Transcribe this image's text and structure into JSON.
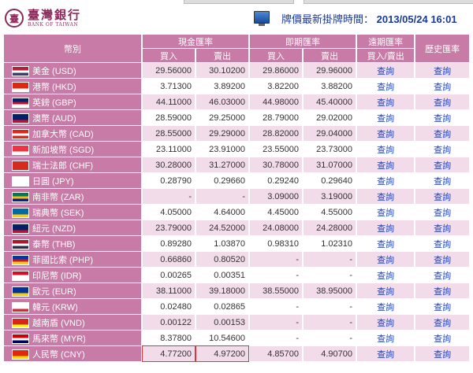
{
  "bank": {
    "name_cn": "臺灣銀行",
    "name_en": "BANK OF TAIWAN"
  },
  "update": {
    "label": "牌價最新掛牌時間：",
    "time": "2013/05/24 16:01"
  },
  "headers": {
    "currency": "幣別",
    "cash": "現金匯率",
    "spot": "即期匯率",
    "forward": "遠期匯率",
    "history": "歷史匯率",
    "buy": "買入",
    "sell": "賣出",
    "buy_sell": "買入/賣出"
  },
  "link_label": "查詢",
  "rows": [
    {
      "name": "美金 (USD)",
      "flag": [
        "#b22234",
        "#fff",
        "#3c3b6e"
      ],
      "cash_buy": "29.56000",
      "cash_sell": "30.10200",
      "spot_buy": "29.86000",
      "spot_sell": "29.96000"
    },
    {
      "name": "港幣 (HKD)",
      "flag": [
        "#de2910",
        "#de2910",
        "#fff"
      ],
      "cash_buy": "3.71300",
      "cash_sell": "3.89200",
      "spot_buy": "3.82200",
      "spot_sell": "3.88200"
    },
    {
      "name": "英鎊 (GBP)",
      "flag": [
        "#012169",
        "#c8102e",
        "#fff"
      ],
      "cash_buy": "44.11000",
      "cash_sell": "46.03000",
      "spot_buy": "44.98000",
      "spot_sell": "45.40000"
    },
    {
      "name": "澳幣 (AUD)",
      "flag": [
        "#012169",
        "#012169",
        "#c8102e"
      ],
      "cash_buy": "28.59000",
      "cash_sell": "29.25000",
      "spot_buy": "28.79000",
      "spot_sell": "29.02000"
    },
    {
      "name": "加拿大幣 (CAD)",
      "flag": [
        "#d52b1e",
        "#fff",
        "#d52b1e"
      ],
      "cash_buy": "28.55000",
      "cash_sell": "29.29000",
      "spot_buy": "28.82000",
      "spot_sell": "29.04000"
    },
    {
      "name": "新加坡幣 (SGD)",
      "flag": [
        "#ef3340",
        "#ef3340",
        "#fff"
      ],
      "cash_buy": "23.11000",
      "cash_sell": "23.91000",
      "spot_buy": "23.55000",
      "spot_sell": "23.73000"
    },
    {
      "name": "瑞士法郎 (CHF)",
      "flag": [
        "#d52b1e",
        "#d52b1e",
        "#d52b1e"
      ],
      "cash_buy": "30.28000",
      "cash_sell": "31.27000",
      "spot_buy": "30.78000",
      "spot_sell": "31.07000"
    },
    {
      "name": "日圓 (JPY)",
      "flag": [
        "#fff",
        "#fff",
        "#fff"
      ],
      "cash_buy": "0.28790",
      "cash_sell": "0.29660",
      "spot_buy": "0.29240",
      "spot_sell": "0.29640"
    },
    {
      "name": "南非幣 (ZAR)",
      "flag": [
        "#007a4d",
        "#ffb612",
        "#002395"
      ],
      "cash_buy": "-",
      "cash_sell": "-",
      "spot_buy": "3.09000",
      "spot_sell": "3.19000"
    },
    {
      "name": "瑞典幣 (SEK)",
      "flag": [
        "#006aa7",
        "#006aa7",
        "#fecc00"
      ],
      "cash_buy": "4.05000",
      "cash_sell": "4.64000",
      "spot_buy": "4.45000",
      "spot_sell": "4.55000"
    },
    {
      "name": "紐元 (NZD)",
      "flag": [
        "#012169",
        "#012169",
        "#c8102e"
      ],
      "cash_buy": "23.79000",
      "cash_sell": "24.52000",
      "spot_buy": "24.08000",
      "spot_sell": "24.28000"
    },
    {
      "name": "泰幣 (THB)",
      "flag": [
        "#a51931",
        "#fff",
        "#2d2a4a"
      ],
      "cash_buy": "0.89280",
      "cash_sell": "1.03870",
      "spot_buy": "0.98310",
      "spot_sell": "1.02310"
    },
    {
      "name": "菲國比索 (PHP)",
      "flag": [
        "#0038a8",
        "#ce1126",
        "#fcd116"
      ],
      "cash_buy": "0.66860",
      "cash_sell": "0.80520",
      "spot_buy": "-",
      "spot_sell": "-"
    },
    {
      "name": "印尼幣 (IDR)",
      "flag": [
        "#ce1126",
        "#fff",
        "#fff"
      ],
      "cash_buy": "0.00265",
      "cash_sell": "0.00351",
      "spot_buy": "-",
      "spot_sell": "-"
    },
    {
      "name": "歐元 (EUR)",
      "flag": [
        "#003399",
        "#003399",
        "#ffcc00"
      ],
      "cash_buy": "38.11000",
      "cash_sell": "39.18000",
      "spot_buy": "38.55000",
      "spot_sell": "38.95000"
    },
    {
      "name": "韓元 (KRW)",
      "flag": [
        "#fff",
        "#fff",
        "#cd2e3a"
      ],
      "cash_buy": "0.02480",
      "cash_sell": "0.02865",
      "spot_buy": "-",
      "spot_sell": "-"
    },
    {
      "name": "越南盾 (VND)",
      "flag": [
        "#da251d",
        "#da251d",
        "#ffff00"
      ],
      "cash_buy": "0.00122",
      "cash_sell": "0.00153",
      "spot_buy": "-",
      "spot_sell": "-"
    },
    {
      "name": "馬來幣 (MYR)",
      "flag": [
        "#cc0001",
        "#fff",
        "#010066"
      ],
      "cash_buy": "8.37800",
      "cash_sell": "10.54600",
      "spot_buy": "-",
      "spot_sell": "-"
    },
    {
      "name": "人民幣 (CNY)",
      "flag": [
        "#de2910",
        "#de2910",
        "#ffde00"
      ],
      "cash_buy": "4.77200",
      "cash_sell": "4.97200",
      "spot_buy": "4.85700",
      "spot_sell": "4.90700",
      "highlighted": true
    }
  ]
}
